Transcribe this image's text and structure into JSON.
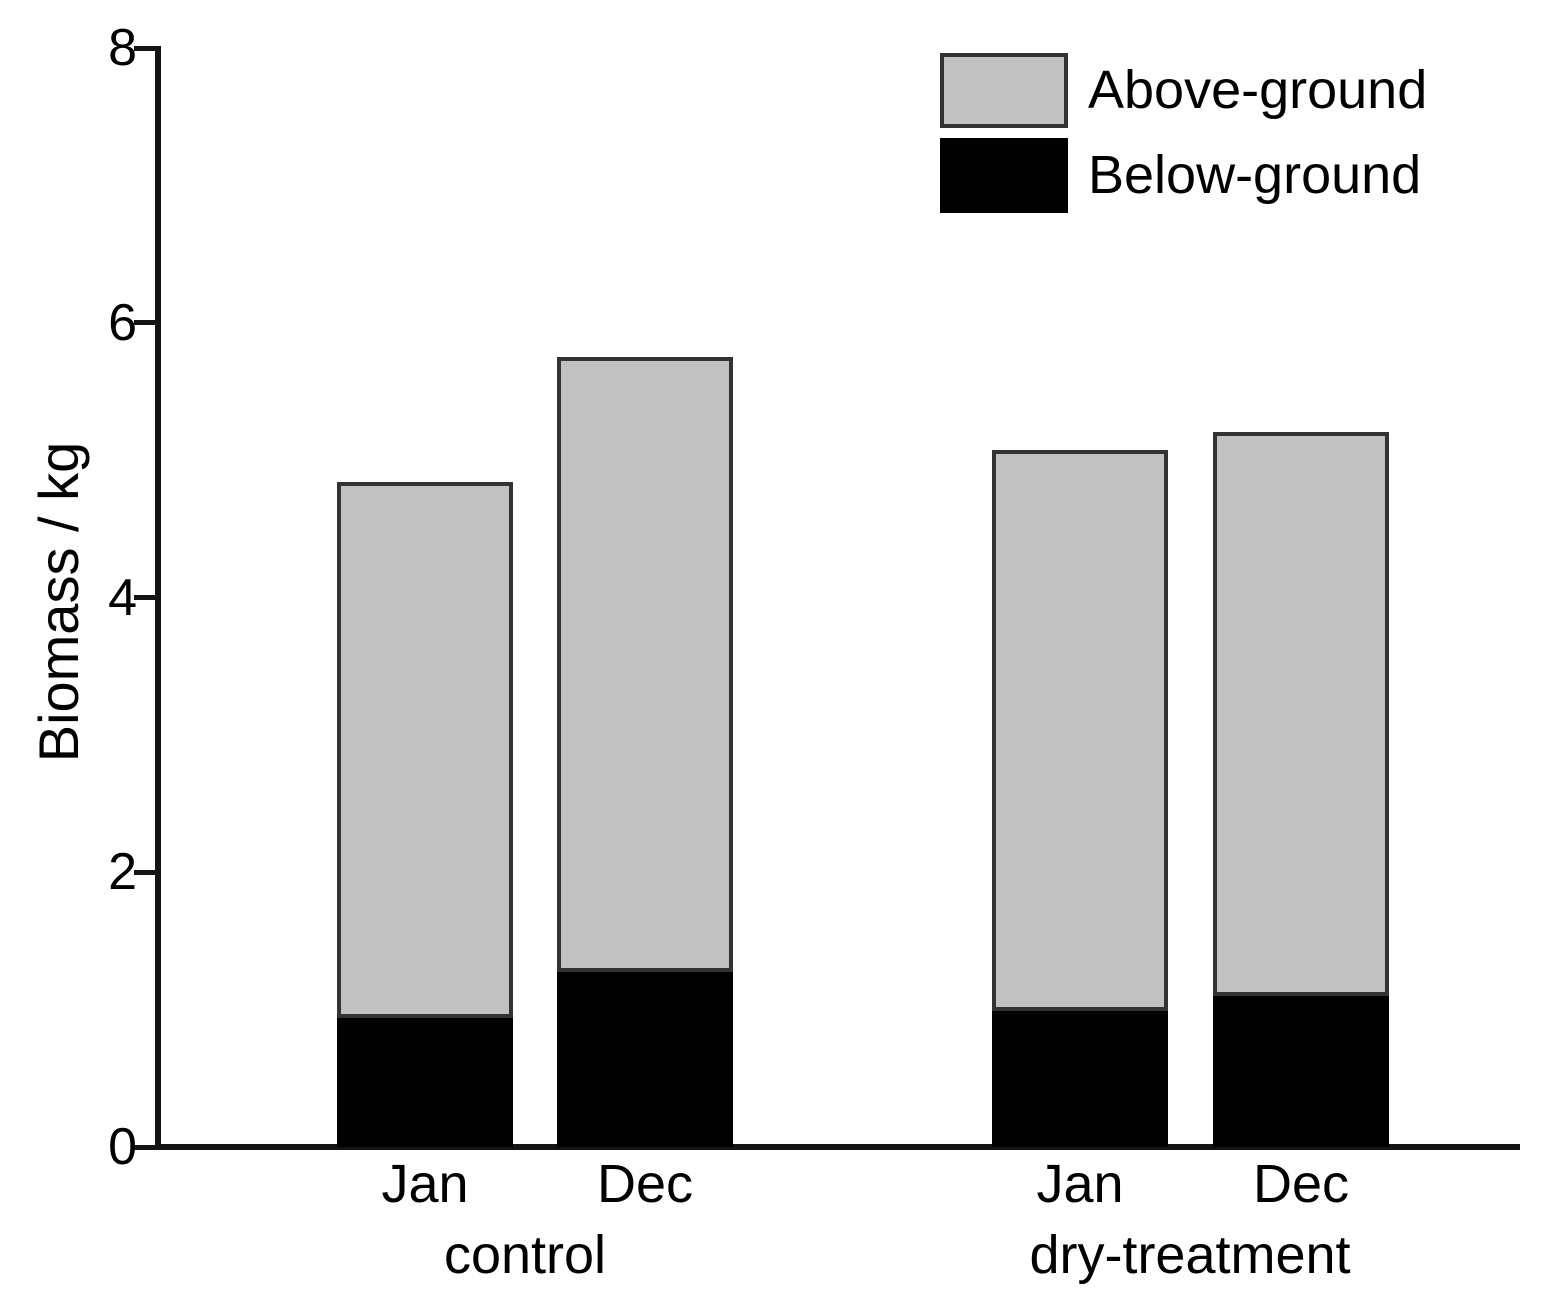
{
  "chart_data": {
    "type": "bar",
    "stacked": true,
    "title": "",
    "ylabel": "Biomass / kg",
    "xlabel": "",
    "ylim": [
      0,
      8
    ],
    "yticks": [
      0,
      2,
      4,
      6,
      8
    ],
    "grid": false,
    "categories": [
      "Jan",
      "Dec",
      "Jan",
      "Dec"
    ],
    "group_labels": [
      "control",
      "dry-treatment"
    ],
    "series": [
      {
        "name": "Below-ground",
        "color": "#000000",
        "values": [
          0.93,
          1.27,
          0.98,
          1.09
        ]
      },
      {
        "name": "Above-ground",
        "color": "#c1c1c1",
        "values": [
          3.9,
          4.47,
          4.09,
          4.11
        ]
      }
    ],
    "totals": [
      4.83,
      5.74,
      5.07,
      5.2
    ],
    "legend": {
      "position": "top-right",
      "entries": [
        "Above-ground",
        "Below-ground"
      ]
    }
  },
  "colors": {
    "background": "#ffffff",
    "axis": "#141414",
    "bar_border": "#333333",
    "text": "#000000"
  }
}
